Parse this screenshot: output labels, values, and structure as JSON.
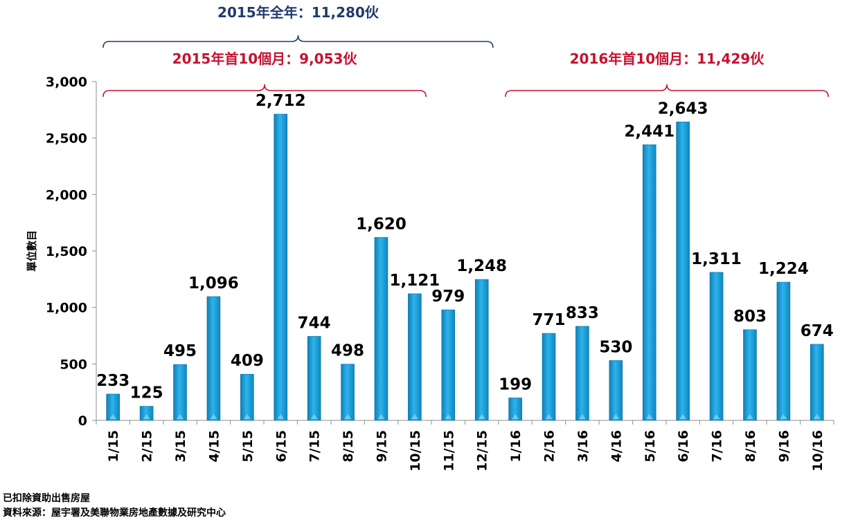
{
  "chart_data": {
    "type": "bar",
    "ylabel": "單位數目",
    "ylim": [
      0,
      3000
    ],
    "yticks": [
      0,
      500,
      1000,
      1500,
      2000,
      2500,
      3000
    ],
    "ytick_labels": [
      "0",
      "500",
      "1,000",
      "1,500",
      "2,000",
      "2,500",
      "3,000"
    ],
    "categories": [
      "1/15",
      "2/15",
      "3/15",
      "4/15",
      "5/15",
      "6/15",
      "7/15",
      "8/15",
      "9/15",
      "10/15",
      "11/15",
      "12/15",
      "1/16",
      "2/16",
      "3/16",
      "4/16",
      "5/16",
      "6/16",
      "7/16",
      "8/16",
      "9/16",
      "10/16"
    ],
    "values": [
      233,
      125,
      495,
      1096,
      409,
      2712,
      744,
      498,
      1620,
      1121,
      979,
      1248,
      199,
      771,
      833,
      530,
      2441,
      2643,
      1311,
      803,
      1224,
      674
    ],
    "value_labels": [
      "233",
      "125",
      "495",
      "1,096",
      "409",
      "2,712",
      "744",
      "498",
      "1,620",
      "1,121",
      "979",
      "1,248",
      "199",
      "771",
      "833",
      "530",
      "2,441",
      "2,643",
      "1,311",
      "803",
      "1,224",
      "674"
    ],
    "bar_color": "#1BA0DB",
    "annotations": [
      {
        "text": "2015年全年：11,280伙",
        "from_index": 0,
        "to_index": 11,
        "color": "#1F3A6E",
        "level": "top"
      },
      {
        "text": "2015年首10個月：9,053伙",
        "from_index": 0,
        "to_index": 9,
        "color": "#C8102E",
        "level": "upper"
      },
      {
        "text": "2016年首10個月：11,429伙",
        "from_index": 12,
        "to_index": 21,
        "color": "#C8102E",
        "level": "upper"
      }
    ]
  },
  "footnotes": {
    "note": "已扣除資助出售房屋",
    "source": "資料來源：屋宇署及美聯物業房地產數據及研究中心"
  }
}
